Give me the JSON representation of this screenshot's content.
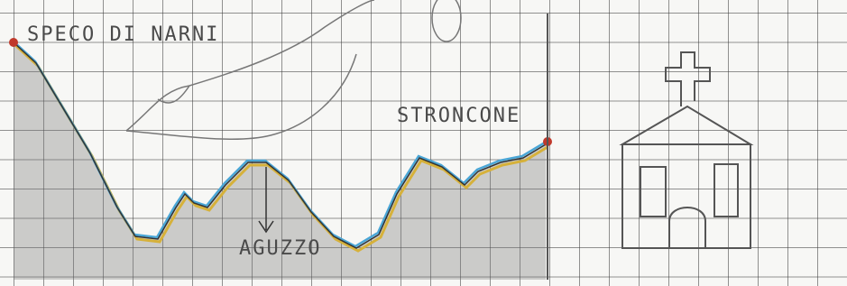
{
  "labels": {
    "start": "SPECO DI NARNI",
    "low": "AGUZZO",
    "end": "STRONCONE"
  }
}
